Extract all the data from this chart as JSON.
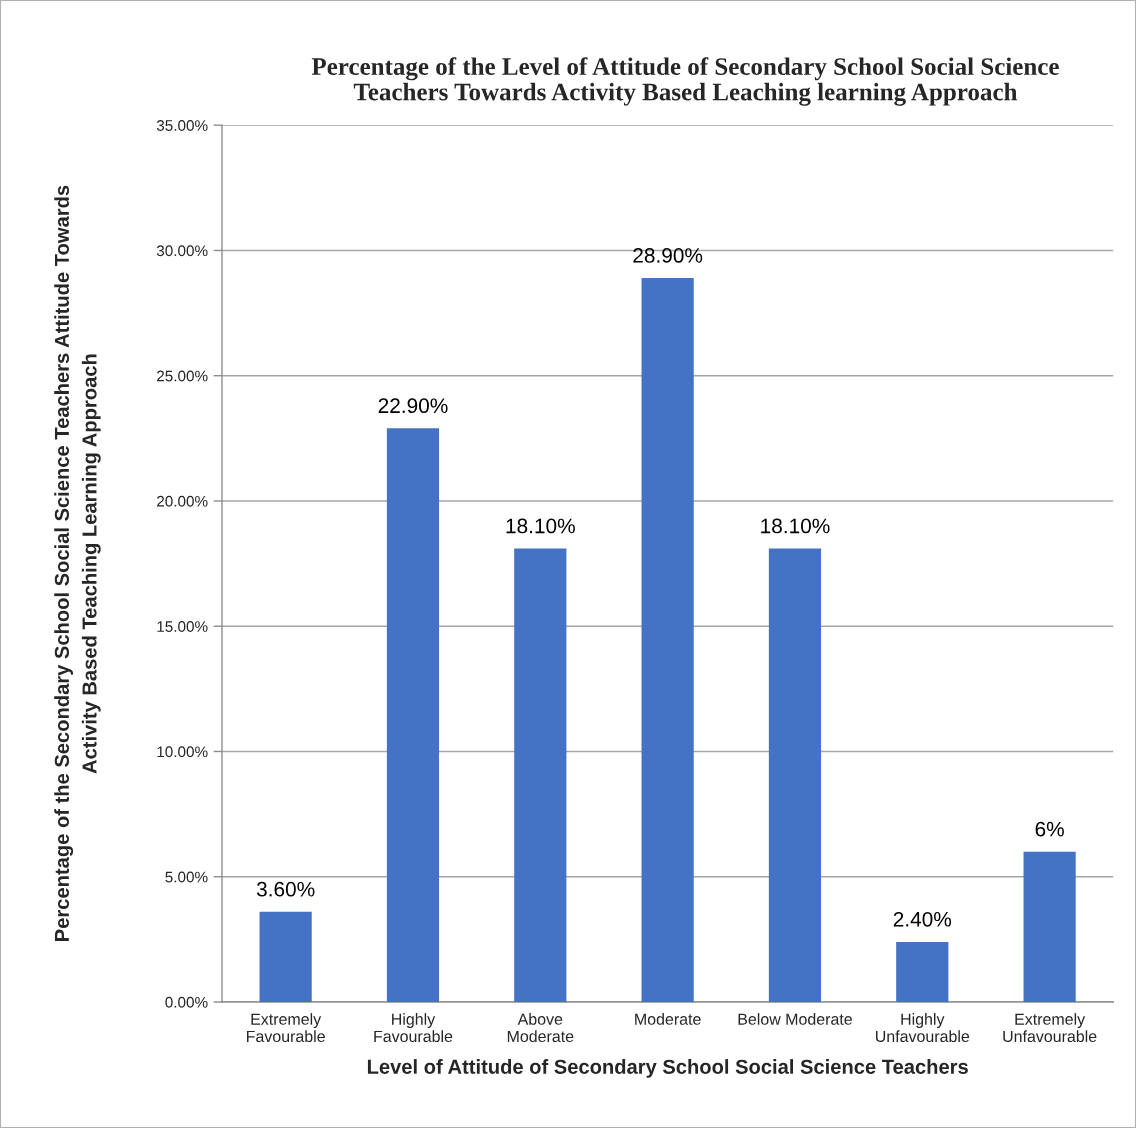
{
  "chart_data": {
    "type": "bar",
    "title": "Percentage of the Level of Attitude of Secondary School Social Science\nTeachers Towards Activity Based Leaching learning Approach",
    "xlabel": "Level of Attitude of Secondary School Social Science Teachers",
    "ylabel": "Percentage of the Secondary School Social Science Teachers Attitude Towards\nActivity Based Teaching Learning Approach",
    "categories": [
      "Extremely\nFavourable",
      "Highly\nFavourable",
      "Above\nModerate",
      "Moderate",
      "Below Moderate",
      "Highly\nUnfavourable",
      "Extremely\nUnfavourable"
    ],
    "values": [
      3.6,
      22.9,
      18.1,
      28.9,
      18.1,
      2.4,
      6
    ],
    "value_labels": [
      "3.60%",
      "22.90%",
      "18.10%",
      "28.90%",
      "18.10%",
      "2.40%",
      "6%"
    ],
    "color": "#4472c4",
    "ylim": [
      0,
      35
    ],
    "yticks": [
      {
        "value": 0,
        "label": "0.00%"
      },
      {
        "value": 5,
        "label": "5.00%"
      },
      {
        "value": 10,
        "label": "10.00%"
      },
      {
        "value": 15,
        "label": "15.00%"
      },
      {
        "value": 20,
        "label": "20.00%"
      },
      {
        "value": 25,
        "label": "25.00%"
      },
      {
        "value": 30,
        "label": "30.00%"
      },
      {
        "value": 35,
        "label": "35.00%"
      }
    ],
    "grid": "y"
  }
}
